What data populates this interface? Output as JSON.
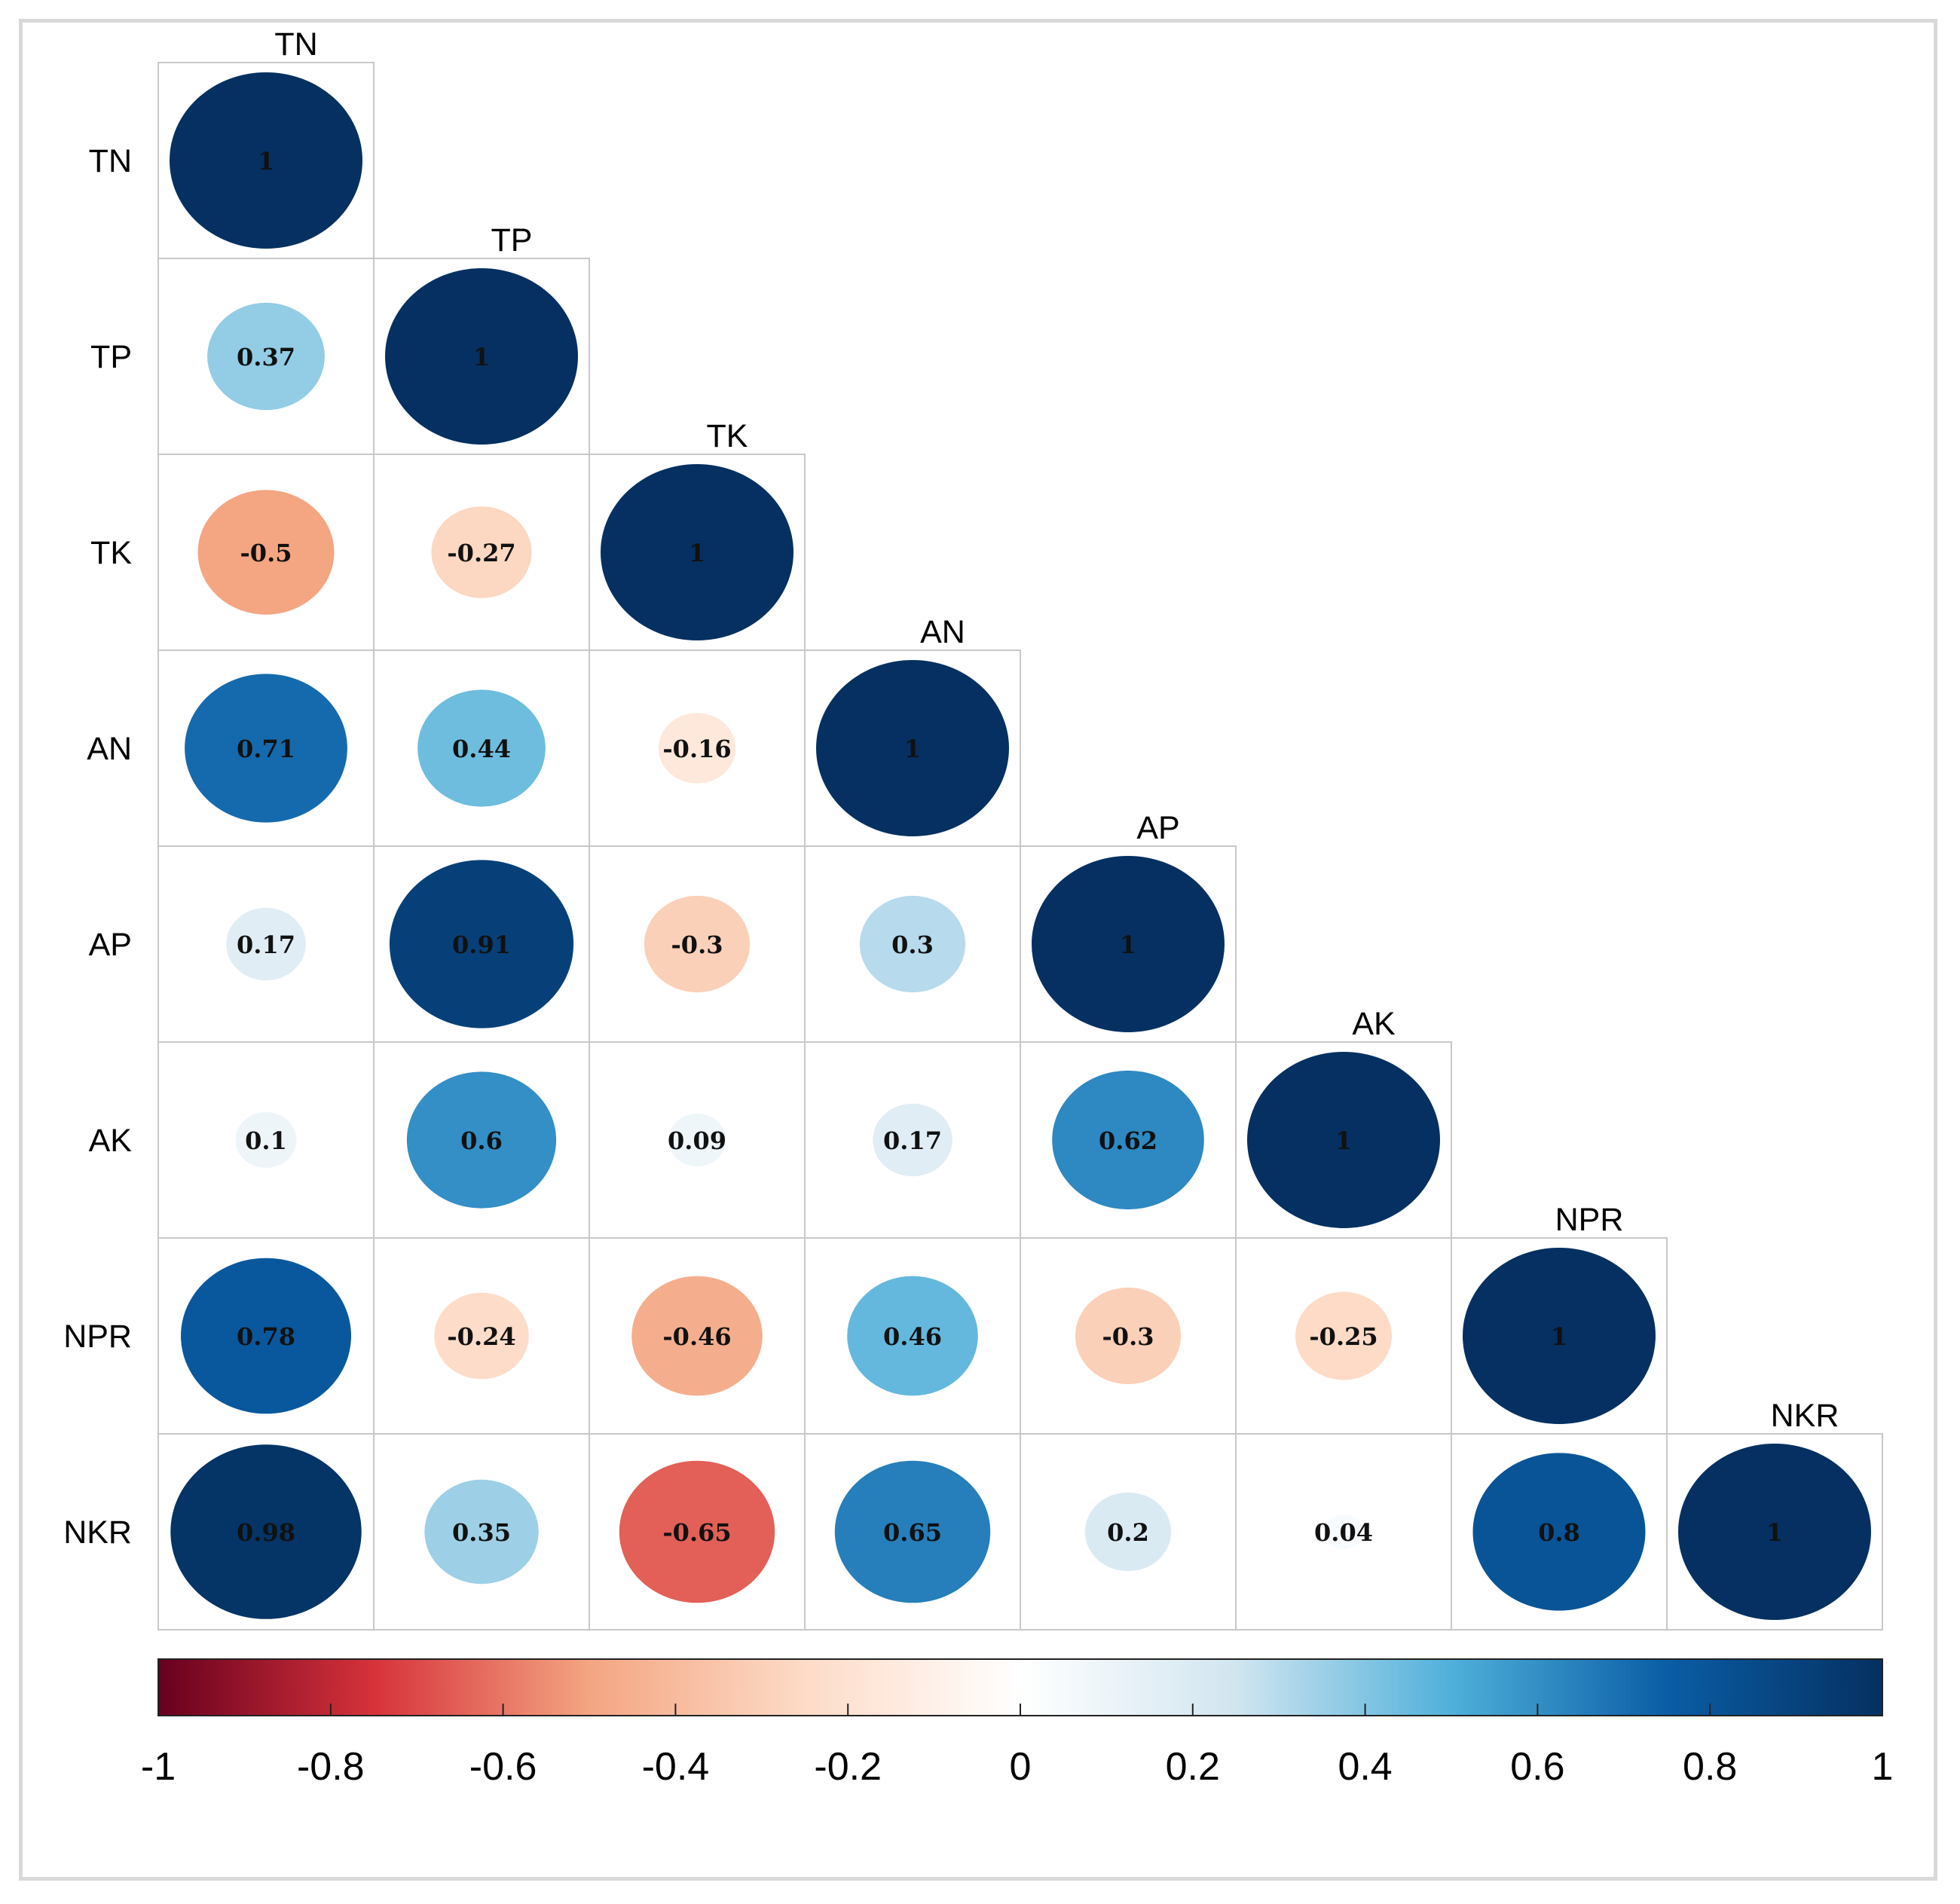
{
  "chart_data": {
    "type": "heatmap",
    "subtype": "correlation-matrix-lower-triangle",
    "glyph": "circle",
    "variables": [
      "TN",
      "TP",
      "TK",
      "AN",
      "AP",
      "AK",
      "NPR",
      "NKR"
    ],
    "matrix": [
      [
        1
      ],
      [
        0.37,
        1
      ],
      [
        -0.5,
        -0.27,
        1
      ],
      [
        0.71,
        0.44,
        -0.16,
        1
      ],
      [
        0.17,
        0.91,
        -0.3,
        0.3,
        1
      ],
      [
        0.1,
        0.6,
        0.09,
        0.17,
        0.62,
        1
      ],
      [
        0.78,
        -0.24,
        -0.46,
        0.46,
        -0.3,
        -0.25,
        1
      ],
      [
        0.98,
        0.35,
        -0.65,
        0.65,
        0.2,
        0.04,
        0.8,
        1
      ]
    ],
    "cell_labels": [
      [
        "1"
      ],
      [
        "0.37",
        "1"
      ],
      [
        "-0.5",
        "-0.27",
        "1"
      ],
      [
        "0.71",
        "0.44",
        "-0.16",
        "1"
      ],
      [
        "0.17",
        "0.91",
        "-0.3",
        "0.3",
        "1"
      ],
      [
        "0.1",
        "0.6",
        "0.09",
        "0.17",
        "0.62",
        "1"
      ],
      [
        "0.78",
        "-0.24",
        "-0.46",
        "0.46",
        "-0.3",
        "-0.25",
        "1"
      ],
      [
        "0.98",
        "0.35",
        "-0.65",
        "0.65",
        "0.2",
        "0.04",
        "0.8",
        "1"
      ]
    ],
    "colorbar": {
      "range": [
        -1,
        1
      ],
      "ticks": [
        -1,
        -0.8,
        -0.6,
        -0.4,
        -0.2,
        0,
        0.2,
        0.4,
        0.6,
        0.8,
        1
      ],
      "tick_labels": [
        "-1",
        "-0.8",
        "-0.6",
        "-0.4",
        "-0.2",
        "0",
        "0.2",
        "0.4",
        "0.6",
        "0.8",
        "1"
      ],
      "placement": "bottom"
    },
    "palette": {
      "stops": [
        -1,
        -0.75,
        -0.5,
        -0.25,
        0,
        0.25,
        0.5,
        0.75,
        1
      ],
      "colors": [
        "#67001F",
        "#D6323A",
        "#F4A582",
        "#FDDBC7",
        "#FFFFFF",
        "#D1E5F0",
        "#4FB0DA",
        "#0A5DA5",
        "#053061"
      ]
    },
    "title": "",
    "xlabel": "",
    "ylabel": ""
  }
}
